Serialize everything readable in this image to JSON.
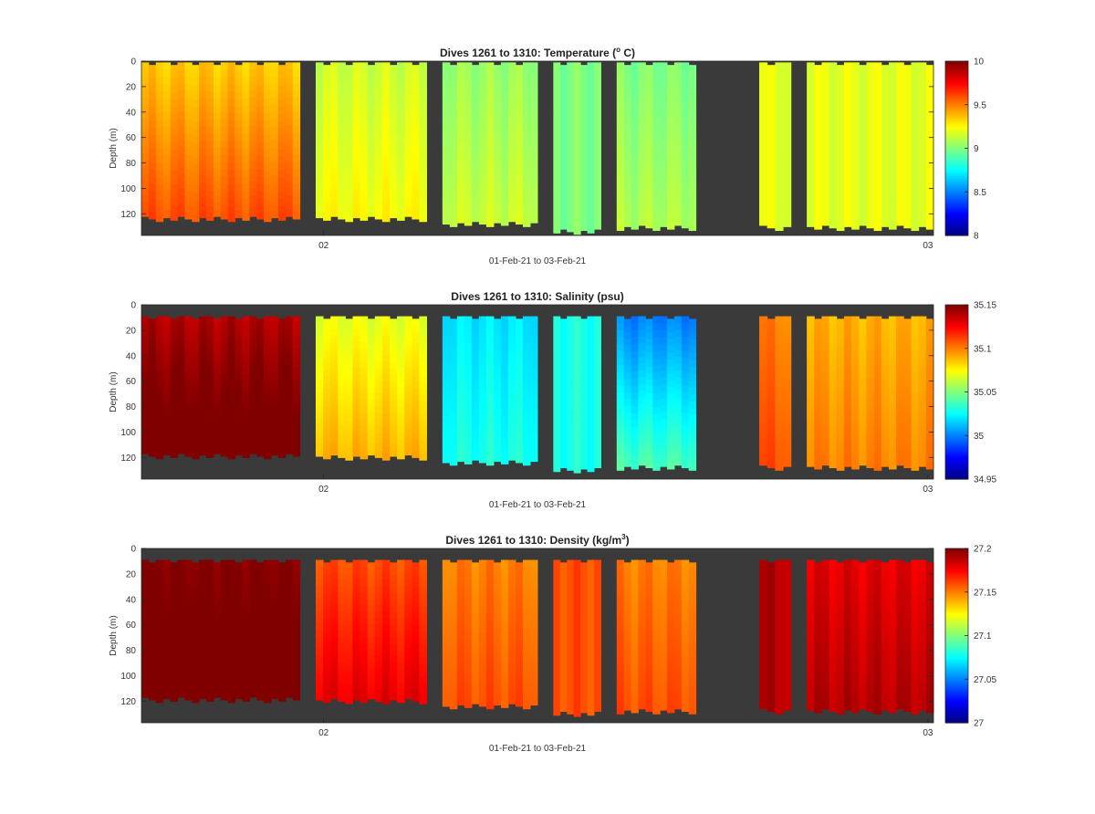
{
  "chart_data": [
    {
      "type": "heatmap",
      "variable": "temperature",
      "title": "Dives 1261 to 1310: Temperature (",
      "title_sup": "o",
      "title_tail": " C)",
      "xlabel": "01-Feb-21 to 03-Feb-21",
      "ylabel": "Depth (m)",
      "x_ticks": [
        "02",
        "03"
      ],
      "y_ticks": [
        0,
        20,
        40,
        60,
        80,
        100,
        120
      ],
      "ylim": [
        0,
        137
      ],
      "colorbar": {
        "min": 8,
        "max": 10,
        "ticks": [
          "8",
          "8.5",
          "9",
          "9.5",
          "10"
        ]
      },
      "segments": [
        {
          "start": 0.0,
          "end": 0.2,
          "top": 1,
          "bottom": 124,
          "surface": 9.35,
          "deep": 9.6
        },
        {
          "start": 0.22,
          "end": 0.36,
          "top": 1,
          "bottom": 124,
          "surface": 9.15,
          "deep": 9.25
        },
        {
          "start": 0.38,
          "end": 0.5,
          "top": 1,
          "bottom": 128,
          "surface": 9.05,
          "deep": 9.15
        },
        {
          "start": 0.52,
          "end": 0.58,
          "top": 1,
          "bottom": 134,
          "surface": 9.0,
          "deep": 9.0
        },
        {
          "start": 0.6,
          "end": 0.7,
          "top": 1,
          "bottom": 131,
          "surface": 9.0,
          "deep": 9.1
        },
        {
          "start": 0.78,
          "end": 0.82,
          "top": 1,
          "bottom": 131,
          "surface": 9.2,
          "deep": 9.2
        },
        {
          "start": 0.84,
          "end": 1.0,
          "top": 1,
          "bottom": 131,
          "surface": 9.2,
          "deep": 9.2
        }
      ]
    },
    {
      "type": "heatmap",
      "variable": "salinity",
      "title": "Dives 1261 to 1310: Salinity (psu)",
      "xlabel": "01-Feb-21 to 03-Feb-21",
      "ylabel": "Depth (m)",
      "x_ticks": [
        "02",
        "03"
      ],
      "y_ticks": [
        0,
        20,
        40,
        60,
        80,
        100,
        120
      ],
      "ylim": [
        0,
        137
      ],
      "colorbar": {
        "min": 34.95,
        "max": 35.15,
        "ticks": [
          "34.95",
          "35",
          "35.05",
          "35.1",
          "35.15"
        ]
      },
      "segments": [
        {
          "start": 0.0,
          "end": 0.2,
          "top": 9,
          "bottom": 119,
          "surface": 35.14,
          "deep": 35.16
        },
        {
          "start": 0.22,
          "end": 0.36,
          "top": 9,
          "bottom": 120,
          "surface": 35.07,
          "deep": 35.09
        },
        {
          "start": 0.38,
          "end": 0.5,
          "top": 9,
          "bottom": 124,
          "surface": 35.02,
          "deep": 35.03
        },
        {
          "start": 0.52,
          "end": 0.58,
          "top": 9,
          "bottom": 130,
          "surface": 35.03,
          "deep": 35.03
        },
        {
          "start": 0.6,
          "end": 0.7,
          "top": 9,
          "bottom": 128,
          "surface": 35.0,
          "deep": 35.04
        },
        {
          "start": 0.78,
          "end": 0.82,
          "top": 9,
          "bottom": 128,
          "surface": 35.1,
          "deep": 35.11
        },
        {
          "start": 0.84,
          "end": 1.0,
          "top": 9,
          "bottom": 128,
          "surface": 35.09,
          "deep": 35.1
        }
      ]
    },
    {
      "type": "heatmap",
      "variable": "density",
      "title": "Dives 1261 to 1310: Density (kg/m",
      "title_sup": "3",
      "title_tail": ")",
      "xlabel": "01-Feb-21 to 03-Feb-21",
      "ylabel": "Depth (m)",
      "x_ticks": [
        "02",
        "03"
      ],
      "y_ticks": [
        0,
        20,
        40,
        60,
        80,
        100,
        120
      ],
      "ylim": [
        0,
        137
      ],
      "colorbar": {
        "min": 27,
        "max": 27.2,
        "ticks": [
          "27",
          "27.05",
          "27.1",
          "27.15",
          "27.2"
        ]
      },
      "segments": [
        {
          "start": 0.0,
          "end": 0.2,
          "top": 9,
          "bottom": 119,
          "surface": 27.2,
          "deep": 27.21
        },
        {
          "start": 0.22,
          "end": 0.36,
          "top": 9,
          "bottom": 120,
          "surface": 27.16,
          "deep": 27.18
        },
        {
          "start": 0.38,
          "end": 0.5,
          "top": 9,
          "bottom": 124,
          "surface": 27.15,
          "deep": 27.16
        },
        {
          "start": 0.52,
          "end": 0.58,
          "top": 9,
          "bottom": 130,
          "surface": 27.16,
          "deep": 27.16
        },
        {
          "start": 0.6,
          "end": 0.7,
          "top": 9,
          "bottom": 128,
          "surface": 27.15,
          "deep": 27.16
        },
        {
          "start": 0.78,
          "end": 0.82,
          "top": 9,
          "bottom": 128,
          "surface": 27.19,
          "deep": 27.19
        },
        {
          "start": 0.84,
          "end": 1.0,
          "top": 9,
          "bottom": 128,
          "surface": 27.18,
          "deep": 27.19
        }
      ]
    }
  ]
}
